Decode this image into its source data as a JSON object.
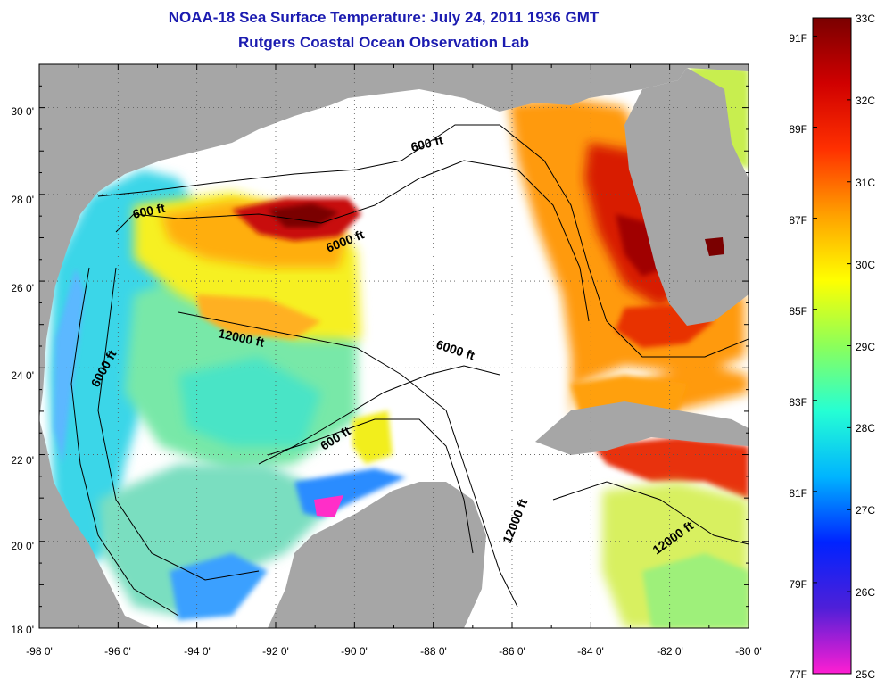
{
  "title": "NOAA-18 Sea Surface Temperature:  July 24, 2011 1936 GMT",
  "subtitle": "Rutgers Coastal Ocean Observation Lab",
  "map": {
    "lat_range": [
      18,
      31
    ],
    "lon_range": [
      -98,
      -80
    ],
    "lat_ticks": [
      "30 0'",
      "28 0'",
      "26 0'",
      "24 0'",
      "22 0'",
      "20 0'",
      "18 0'"
    ],
    "lon_ticks": [
      "-98 0'",
      "-96 0'",
      "-94 0'",
      "-92 0'",
      "-90 0'",
      "-88 0'",
      "-86 0'",
      "-84 0'",
      "-82 0'",
      "-80 0'"
    ],
    "grid": "dotted",
    "land_color": "#a6a6a6",
    "cloud_color": "#ffffff"
  },
  "contour_labels": [
    {
      "id": "c600a",
      "text": "600 ft"
    },
    {
      "id": "c600b",
      "text": "600 ft"
    },
    {
      "id": "c600c",
      "text": "600 ft"
    },
    {
      "id": "c6000a",
      "text": "6000 ft"
    },
    {
      "id": "c6000b",
      "text": "6000 ft"
    },
    {
      "id": "c6000c",
      "text": "6000 ft"
    },
    {
      "id": "c12000a",
      "text": "12000 ft"
    },
    {
      "id": "c12000b",
      "text": "12000 ft"
    },
    {
      "id": "c12000c",
      "text": "12000 ft"
    }
  ],
  "colorbar": {
    "range_c": [
      25,
      33
    ],
    "celsius_labels": [
      "33C",
      "32C",
      "31C",
      "30C",
      "29C",
      "28C",
      "27C",
      "26C",
      "25C"
    ],
    "fahrenheit_labels": [
      "91F",
      "89F",
      "87F",
      "85F",
      "83F",
      "81F",
      "79F",
      "77F"
    ],
    "colors": [
      "#ff1ed2",
      "#4f1fd8",
      "#0023ff",
      "#00b4ff",
      "#25ffd4",
      "#8cff5a",
      "#ffff00",
      "#ffa000",
      "#ff3000",
      "#d00000",
      "#7a0000"
    ]
  }
}
